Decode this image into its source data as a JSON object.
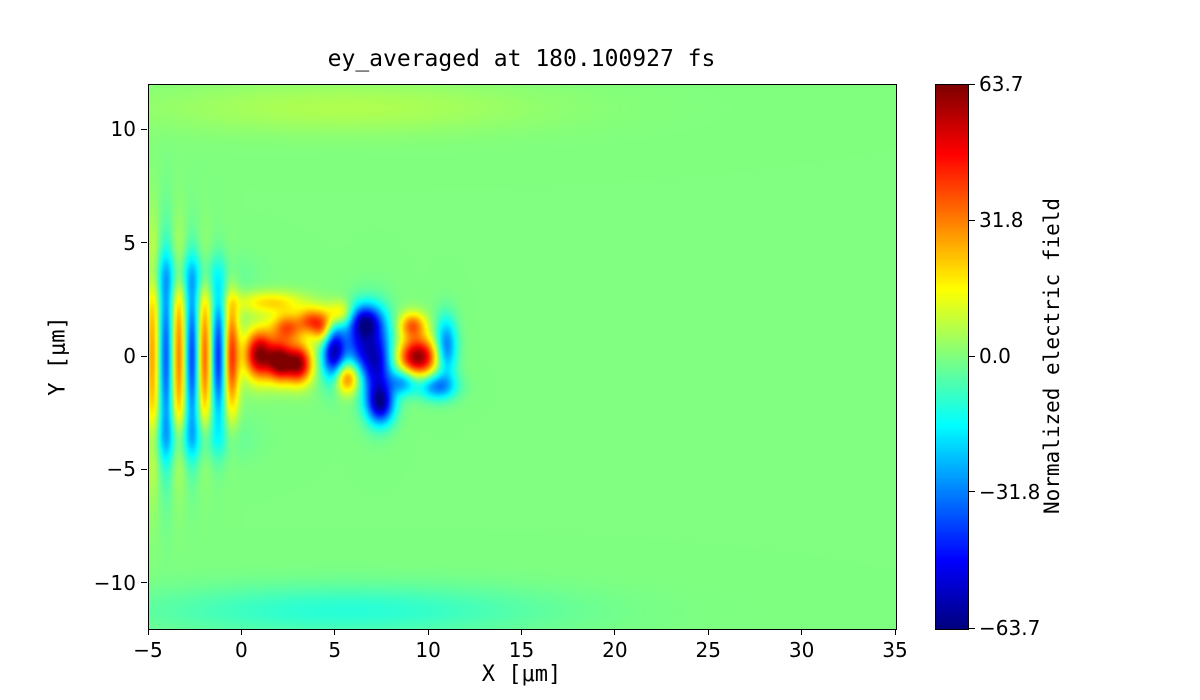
{
  "figure": {
    "background_color": "#ffffff"
  },
  "chart_data": {
    "type": "heatmap",
    "title": "ey_averaged at 180.100927 fs",
    "xlabel": "X [μm]",
    "ylabel": "Y [μm]",
    "colorbar_label": "Normalized electric field",
    "colormap": "jet",
    "x_range": [
      -5,
      35
    ],
    "y_range": [
      -12,
      12
    ],
    "clim": [
      -63.7,
      63.7
    ],
    "background_value": 0.0,
    "x_tick_labels": [
      "−5",
      "0",
      "5",
      "10",
      "15",
      "20",
      "25",
      "30",
      "35"
    ],
    "x_tick_values": [
      -5,
      0,
      5,
      10,
      15,
      20,
      25,
      30,
      35
    ],
    "y_tick_labels": [
      "−10",
      "−5",
      "0",
      "5",
      "10"
    ],
    "y_tick_values": [
      -10,
      -5,
      0,
      5,
      10
    ],
    "colorbar_tick_labels": [
      "63.7",
      "31.8",
      "0.0",
      "−31.8",
      "−63.7"
    ],
    "colorbar_tick_values": [
      63.7,
      31.8,
      0.0,
      -31.8,
      -63.7
    ],
    "field_blobs": [
      {
        "x": -4.8,
        "y": 0.0,
        "sx": 0.28,
        "sy": 3.2,
        "amp": 28
      },
      {
        "x": -4.1,
        "y": 0.0,
        "sx": 0.28,
        "sy": 3.0,
        "amp": -38
      },
      {
        "x": -3.4,
        "y": 0.0,
        "sx": 0.28,
        "sy": 2.7,
        "amp": 34
      },
      {
        "x": -2.7,
        "y": 0.0,
        "sx": 0.28,
        "sy": 2.5,
        "amp": -42
      },
      {
        "x": -2.0,
        "y": 0.0,
        "sx": 0.3,
        "sy": 2.2,
        "amp": 38
      },
      {
        "x": -1.3,
        "y": 0.0,
        "sx": 0.3,
        "sy": 2.0,
        "amp": -46
      },
      {
        "x": -0.6,
        "y": 0.0,
        "sx": 0.3,
        "sy": 1.8,
        "amp": 42
      },
      {
        "x": 0.9,
        "y": 0.1,
        "sx": 0.55,
        "sy": 0.75,
        "amp": 62
      },
      {
        "x": 2.0,
        "y": -0.2,
        "sx": 0.45,
        "sy": 0.6,
        "amp": 58
      },
      {
        "x": 3.0,
        "y": -0.3,
        "sx": 0.5,
        "sy": 0.6,
        "amp": 60
      },
      {
        "x": 2.4,
        "y": 1.3,
        "sx": 0.6,
        "sy": 0.45,
        "amp": 36
      },
      {
        "x": 3.6,
        "y": 1.6,
        "sx": 0.45,
        "sy": 0.4,
        "amp": 30
      },
      {
        "x": 1.5,
        "y": 2.4,
        "sx": 1.3,
        "sy": 0.35,
        "amp": 20
      },
      {
        "x": 4.9,
        "y": 0.2,
        "sx": 0.45,
        "sy": 0.9,
        "amp": -58
      },
      {
        "x": 6.2,
        "y": 0.6,
        "sx": 0.55,
        "sy": 1.0,
        "amp": -34
      },
      {
        "x": 7.2,
        "y": -0.2,
        "sx": 0.6,
        "sy": 1.3,
        "amp": -52
      },
      {
        "x": 7.4,
        "y": -2.1,
        "sx": 0.5,
        "sy": 0.6,
        "amp": -46
      },
      {
        "x": 6.6,
        "y": 1.6,
        "sx": 0.6,
        "sy": 0.5,
        "amp": -36
      },
      {
        "x": 5.6,
        "y": -0.9,
        "sx": 0.5,
        "sy": 0.5,
        "amp": 42
      },
      {
        "x": 4.3,
        "y": 1.3,
        "sx": 0.4,
        "sy": 0.5,
        "amp": 36
      },
      {
        "x": 5.2,
        "y": 1.9,
        "sx": 0.5,
        "sy": 0.4,
        "amp": 25
      },
      {
        "x": 9.4,
        "y": 0.0,
        "sx": 0.75,
        "sy": 0.6,
        "amp": 62
      },
      {
        "x": 9.1,
        "y": 1.4,
        "sx": 0.5,
        "sy": 0.4,
        "amp": 34
      },
      {
        "x": 10.9,
        "y": 0.4,
        "sx": 0.4,
        "sy": 0.9,
        "amp": -36
      },
      {
        "x": 10.4,
        "y": -1.3,
        "sx": 0.7,
        "sy": 0.4,
        "amp": -32
      },
      {
        "x": 8.6,
        "y": -1.1,
        "sx": 0.5,
        "sy": 0.4,
        "amp": -28
      },
      {
        "x": -3.0,
        "y": 3.6,
        "sx": 1.8,
        "sy": 0.7,
        "amp": -13
      },
      {
        "x": -3.0,
        "y": -3.6,
        "sx": 1.8,
        "sy": 0.7,
        "amp": -13
      },
      {
        "x": 5.5,
        "y": 11.0,
        "sx": 7.5,
        "sy": 0.8,
        "amp": 6
      },
      {
        "x": 5.5,
        "y": -11.2,
        "sx": 7.5,
        "sy": 0.8,
        "amp": -11
      }
    ]
  }
}
